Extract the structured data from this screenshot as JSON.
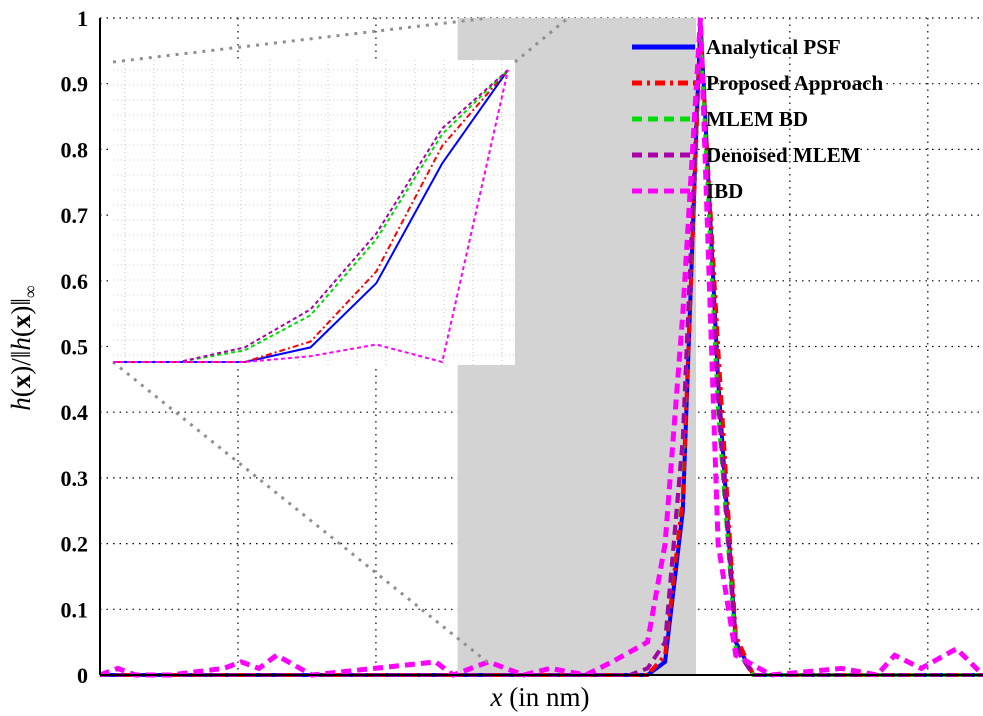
{
  "chart_data": {
    "type": "line",
    "title": "",
    "xlabel": "x (in nm)",
    "ylabel": "h(x)/||h(x)||∞",
    "ylim": [
      0,
      1
    ],
    "xlim": [
      0,
      100
    ],
    "yticks": [
      "0",
      "0.1",
      "0.2",
      "0.3",
      "0.4",
      "0.5",
      "0.6",
      "0.7",
      "0.8",
      "0.9",
      "1"
    ],
    "grid": true,
    "legend_position": "top-right",
    "series": [
      {
        "name": "Analytical PSF",
        "color": "#0000ff",
        "style": "solid",
        "x": [
          0,
          60,
          62,
          64,
          66,
          68,
          70,
          72,
          74,
          100
        ],
        "y": [
          0,
          0,
          0,
          0.02,
          0.25,
          1,
          0.45,
          0.05,
          0,
          0
        ]
      },
      {
        "name": "Proposed Approach",
        "color": "#ff0000",
        "style": "dashdot",
        "x": [
          0,
          60,
          62,
          64,
          66,
          68,
          70,
          72,
          74,
          100
        ],
        "y": [
          0,
          0,
          0,
          0.03,
          0.27,
          0.98,
          0.5,
          0.06,
          0,
          0
        ]
      },
      {
        "name": "MLEM BD",
        "color": "#00dd00",
        "style": "dashed",
        "x": [
          0,
          60,
          62,
          64,
          66,
          68,
          70,
          72,
          74,
          100
        ],
        "y": [
          0,
          0,
          0.01,
          0.05,
          0.35,
          0.98,
          0.4,
          0.04,
          0,
          0
        ]
      },
      {
        "name": "Denoised MLEM",
        "color": "#aa00aa",
        "style": "dashed",
        "x": [
          0,
          60,
          62,
          64,
          66,
          68,
          70,
          72,
          74,
          100
        ],
        "y": [
          0,
          0,
          0.01,
          0.05,
          0.36,
          0.99,
          0.42,
          0.04,
          0,
          0
        ]
      },
      {
        "name": "IBD",
        "color": "#ff00ff",
        "style": "dashed",
        "x": [
          0,
          2,
          4,
          8,
          14,
          16,
          18,
          20,
          24,
          38,
          40,
          42,
          44,
          48,
          51,
          55,
          58,
          62,
          64,
          66,
          68,
          70,
          72,
          76,
          84,
          88,
          90,
          93,
          97,
          100
        ],
        "y": [
          0,
          0.01,
          0,
          0,
          0.01,
          0.02,
          0.01,
          0.03,
          0,
          0.02,
          0,
          0.01,
          0.02,
          0,
          0.01,
          0,
          0.02,
          0.05,
          0.2,
          0.55,
          1,
          0.2,
          0.03,
          0,
          0.01,
          0,
          0.03,
          0.01,
          0.04,
          0
        ]
      }
    ],
    "inset": {
      "description_free": true,
      "x": [
        0,
        1,
        2,
        3,
        4,
        5,
        6
      ],
      "series": [
        {
          "ref": 0,
          "y": [
            0,
            0,
            0,
            0.05,
            0.27,
            0.68,
            1.0
          ]
        },
        {
          "ref": 1,
          "y": [
            0,
            0,
            0,
            0.07,
            0.31,
            0.74,
            1.0
          ]
        },
        {
          "ref": 2,
          "y": [
            0,
            0,
            0.04,
            0.16,
            0.42,
            0.78,
            1.0
          ]
        },
        {
          "ref": 3,
          "y": [
            0,
            0,
            0.05,
            0.18,
            0.44,
            0.8,
            1.0
          ]
        },
        {
          "ref": 4,
          "y": [
            0,
            0,
            0,
            0.02,
            0.06,
            0,
            1.0
          ]
        }
      ]
    }
  }
}
